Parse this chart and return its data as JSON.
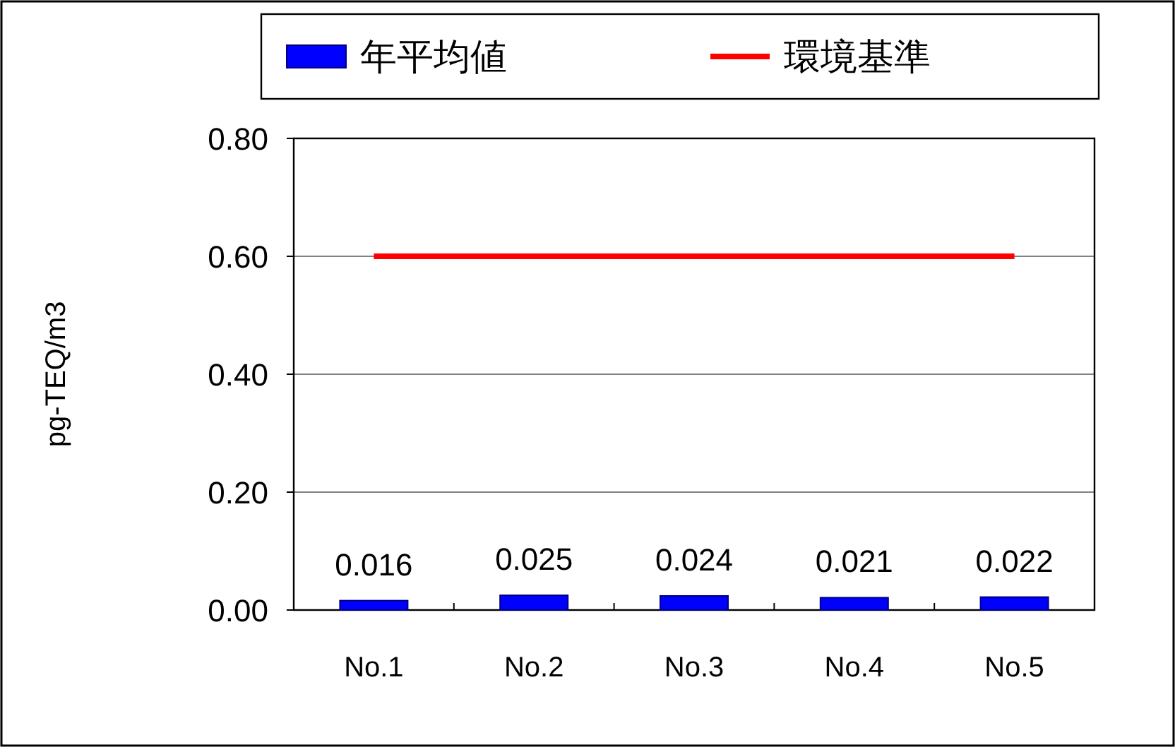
{
  "chart_data": {
    "type": "bar",
    "ylabel": "pg-TEQ/m3",
    "categories": [
      "No.1",
      "No.2",
      "No.3",
      "No.4",
      "No.5"
    ],
    "series": [
      {
        "name": "年平均値",
        "color": "#0000ff",
        "values": [
          0.016,
          0.025,
          0.024,
          0.021,
          0.022
        ],
        "value_labels": [
          "0.016",
          "0.025",
          "0.024",
          "0.021",
          "0.022"
        ]
      },
      {
        "name": "環境基準",
        "type": "line",
        "color": "#ff0000",
        "values": [
          0.6,
          0.6,
          0.6,
          0.6,
          0.6
        ]
      }
    ],
    "ylim": [
      0,
      0.8
    ],
    "yticks": [
      {
        "value": 0,
        "label": "0.00"
      },
      {
        "value": 0.2,
        "label": "0.20"
      },
      {
        "value": 0.4,
        "label": "0.40"
      },
      {
        "value": 0.6,
        "label": "0.60"
      },
      {
        "value": 0.8,
        "label": "0.80"
      }
    ],
    "grid": "y",
    "legend": "top"
  }
}
